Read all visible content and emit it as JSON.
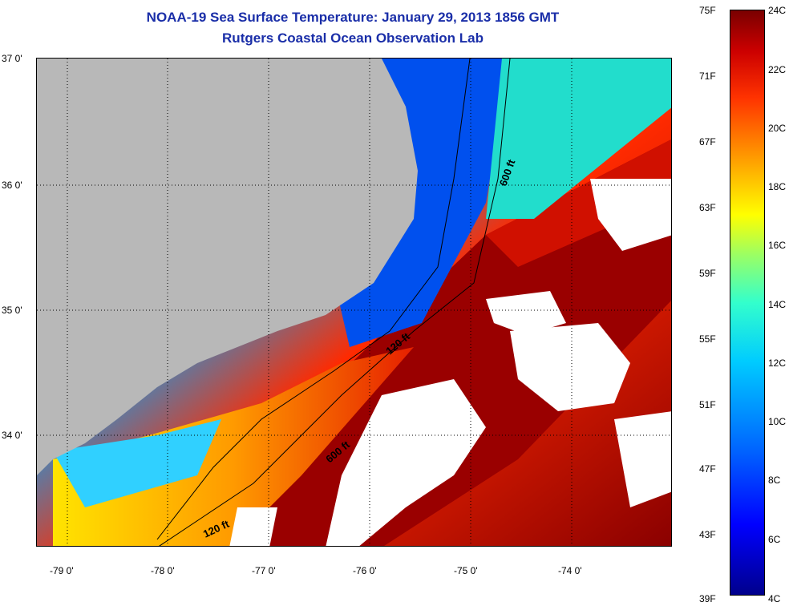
{
  "titles": {
    "line1": "NOAA-19 Sea Surface Temperature:  January 29, 2013 1856 GMT",
    "line2": "Rutgers Coastal Ocean Observation Lab"
  },
  "map": {
    "lat_labels": [
      "37 0'",
      "36 0'",
      "35 0'",
      "34 0'"
    ],
    "lon_labels": [
      "-79 0'",
      "-78 0'",
      "-77 0'",
      "-76 0'",
      "-75 0'",
      "-74 0'"
    ],
    "contour_labels": [
      "600 ft",
      "120 ft",
      "600 ft",
      "120 ft"
    ]
  },
  "colorbar": {
    "fahrenheit": [
      "75F",
      "71F",
      "67F",
      "63F",
      "59F",
      "55F",
      "51F",
      "47F",
      "43F",
      "39F"
    ],
    "celsius": [
      "24C",
      "22C",
      "20C",
      "18C",
      "16C",
      "14C",
      "12C",
      "10C",
      "8C",
      "6C",
      "4C"
    ]
  },
  "colors": {
    "land": "#b8b8b8",
    "title": "#1a2ea8"
  }
}
